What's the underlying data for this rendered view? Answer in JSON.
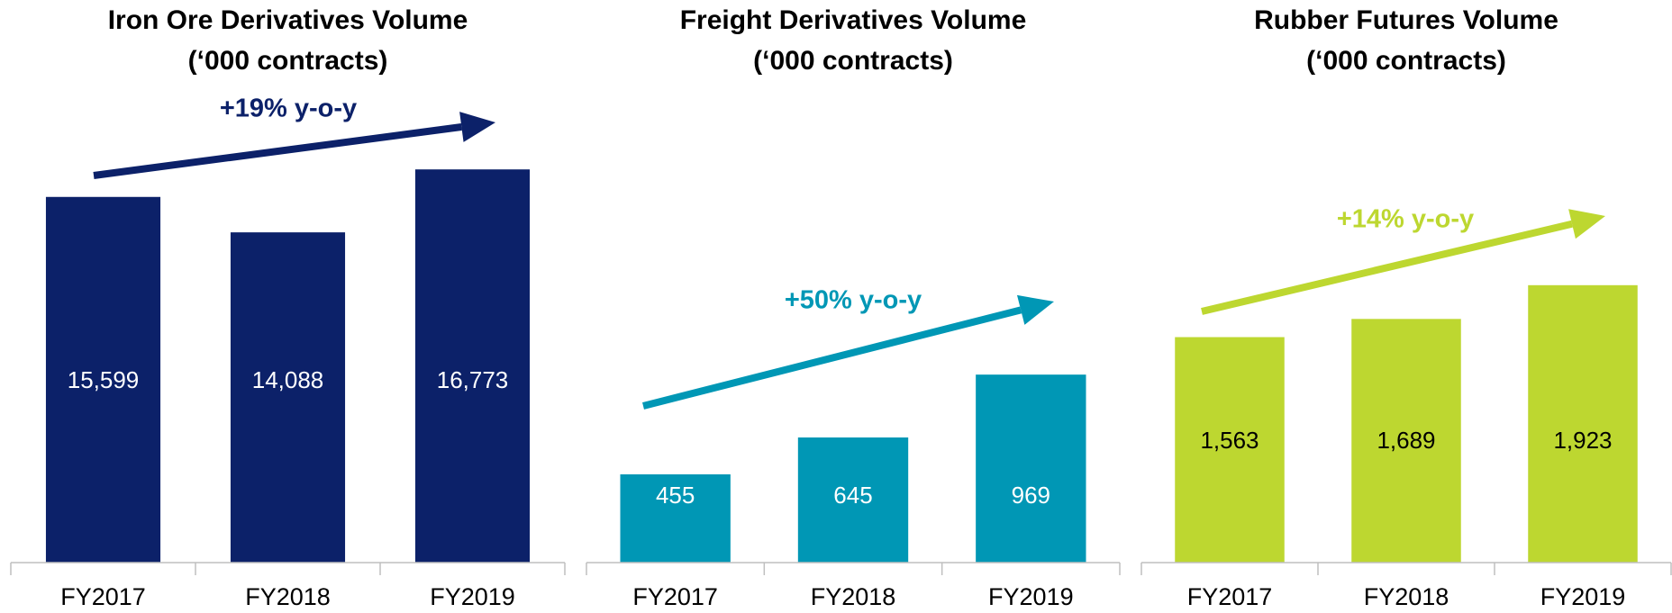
{
  "chart_data": [
    {
      "type": "bar",
      "title": "Iron Ore Derivatives Volume",
      "subtitle": "(‘000 contracts)",
      "categories": [
        "FY2017",
        "FY2018",
        "FY2019"
      ],
      "values": [
        15599,
        14088,
        16773
      ],
      "value_labels": [
        "15,599",
        "14,088",
        "16,773"
      ],
      "color": "#0c2169",
      "label_color": "#ffffff",
      "annotation": "+19% y-o-y",
      "ylim": [
        0,
        24000
      ]
    },
    {
      "type": "bar",
      "title": "Freight Derivatives Volume",
      "subtitle": "(‘000 contracts)",
      "categories": [
        "FY2017",
        "FY2018",
        "FY2019"
      ],
      "values": [
        455,
        645,
        969
      ],
      "color": "#0097b5",
      "label_color": "#ffffff",
      "annotation": "+50% y-o-y",
      "ylim": [
        0,
        2900
      ]
    },
    {
      "type": "bar",
      "title": "Rubber Futures Volume",
      "subtitle": "(‘000 contracts)",
      "categories": [
        "FY2017",
        "FY2018",
        "FY2019"
      ],
      "values": [
        1563,
        1689,
        1923
      ],
      "value_labels": [
        "1,563",
        "1,689",
        "1,923"
      ],
      "color": "#bdd730",
      "label_color": "#000000",
      "annotation": "+14% y-o-y",
      "ylim": [
        0,
        3900
      ]
    }
  ]
}
